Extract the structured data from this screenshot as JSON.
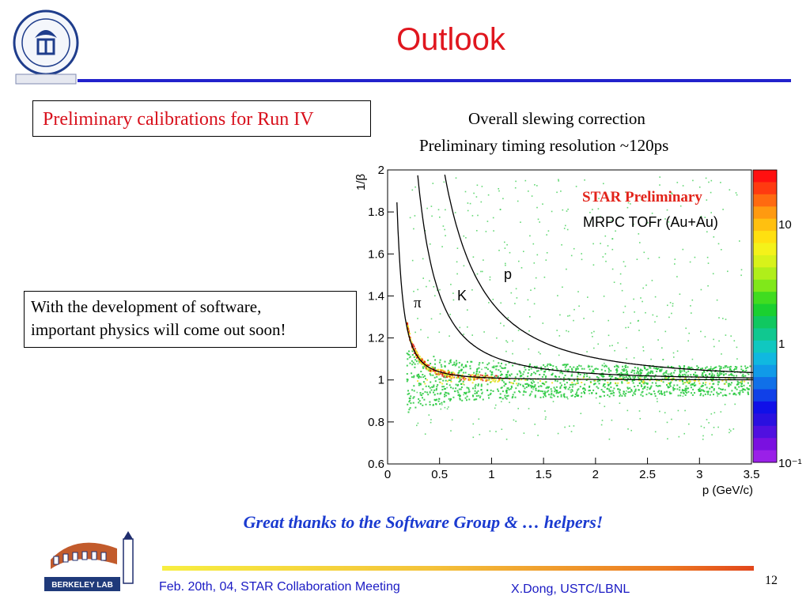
{
  "slide": {
    "title": "Outlook",
    "calib_label": "Preliminary calibrations for Run IV",
    "dev_line1": "With the development of software,",
    "dev_line2": "important physics will come out soon!",
    "caption_slewing": "Overall slewing correction",
    "caption_timing": "Preliminary timing resolution   ~120ps",
    "thanks": "Great thanks to the Software Group & … helpers!",
    "footer_date": "Feb. 20th, 04,  STAR Collaboration Meeting",
    "footer_author": "X.Dong,  USTC/LBNL",
    "page_number": "12",
    "seal_text": "UNIVERSITY OF SCIENCE AND TECHNOLOGY OF CHINA",
    "logo_text": "BERKELEY LAB"
  },
  "chart_data": {
    "type": "scatter",
    "title": "",
    "xlabel": "p (GeV/c)",
    "ylabel": "1/β",
    "xlim": [
      0,
      3.5
    ],
    "ylim": [
      0.6,
      2
    ],
    "x_ticks": [
      "0",
      "0.5",
      "1",
      "1.5",
      "2",
      "2.5",
      "3",
      "3.5"
    ],
    "y_ticks": [
      "0.6",
      "0.8",
      "1",
      "1.2",
      "1.4",
      "1.6",
      "1.8",
      "2"
    ],
    "colorbar_ticks": [
      "10",
      "1",
      "10⁻¹"
    ],
    "colorbar_scale": "log",
    "annotation_preliminary": "STAR Preliminary",
    "annotation_detector": "MRPC TOFr (Au+Au)",
    "series": [
      {
        "name": "π",
        "mass_gev": 0.1396
      },
      {
        "name": "K",
        "mass_gev": 0.4937
      },
      {
        "name": "p",
        "mass_gev": 0.9383
      }
    ],
    "colors": {
      "data_green": "#22c83a",
      "data_yellow": "#f2e21c",
      "data_red": "#e2231a",
      "curve": "#000000"
    }
  }
}
